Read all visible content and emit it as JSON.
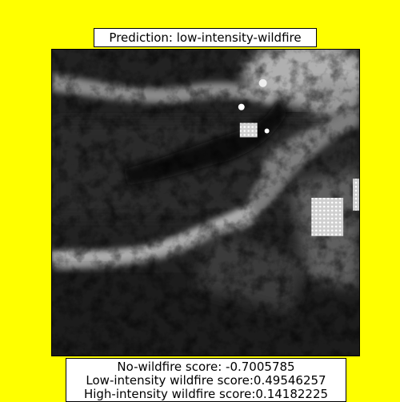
{
  "title": "Prediction: low-intensity-wildfire",
  "scores": {
    "no_wildfire": "No-wildfire score: -0.7005785",
    "low_intensity": "Low-intensity wildfire score:0.49546257",
    "high_intensity": "High-intensity wildfire score:0.14182225"
  },
  "colors": {
    "background": "#ffff00"
  }
}
